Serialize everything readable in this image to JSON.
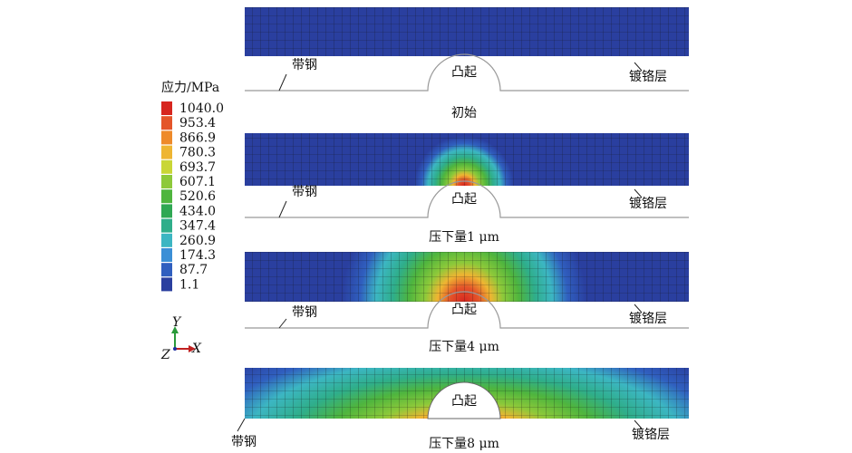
{
  "legend": {
    "title": "应力/MPa",
    "labels": [
      "1040.0",
      "953.4",
      "866.9",
      "780.3",
      "693.7",
      "607.1",
      "520.6",
      "434.0",
      "347.4",
      "260.9",
      "174.3",
      "87.7",
      "1.1"
    ],
    "colors": [
      "#d7261f",
      "#e4552a",
      "#ee8a2a",
      "#eeb532",
      "#c9d636",
      "#8dc93a",
      "#4fb53e",
      "#2fa853",
      "#2fae8a",
      "#3cb6c2",
      "#3b8fd6",
      "#305fbf",
      "#2a3f9f"
    ]
  },
  "axes": {
    "y": "Y",
    "z": "Z",
    "x": "X"
  },
  "panels": [
    {
      "strip": "带钢",
      "bump": "凸起",
      "coating": "镀铬层",
      "caption": "初始"
    },
    {
      "strip": "带钢",
      "bump": "凸起",
      "coating": "镀铬层",
      "caption": "压下量1 μm"
    },
    {
      "strip": "带钢",
      "bump": "凸起",
      "coating": "镀铬层",
      "caption": "压下量4 μm"
    },
    {
      "strip": "带钢",
      "bump": "凸起",
      "coating": "镀铬层",
      "caption": "压下量8 μm"
    }
  ]
}
